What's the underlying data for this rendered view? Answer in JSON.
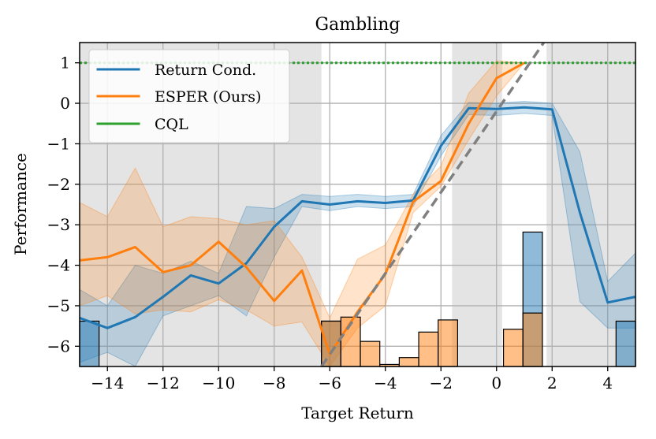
{
  "chart_data": {
    "type": "line",
    "title": "Gambling",
    "xlabel": "Target Return",
    "ylabel": "Performance",
    "xlim": [
      -15,
      5
    ],
    "ylim": [
      -6.5,
      1.5
    ],
    "grid": true,
    "legend_position": "top-left",
    "xticks": [
      -14,
      -12,
      -10,
      -8,
      -6,
      -4,
      -2,
      0,
      2,
      4
    ],
    "xtick_labels": [
      "−14",
      "−12",
      "−10",
      "−8",
      "−6",
      "−4",
      "−2",
      "0",
      "2",
      "4"
    ],
    "yticks": [
      1,
      0,
      -1,
      -2,
      -3,
      -4,
      -5,
      -6
    ],
    "ytick_labels": [
      "1",
      "0",
      "−1",
      "−2",
      "−3",
      "−4",
      "−5",
      "−6"
    ],
    "shaded_x_ranges": [
      [
        -15,
        -6.3
      ],
      [
        -1.6,
        0.2
      ],
      [
        1.8,
        5
      ]
    ],
    "reference_line": {
      "style": "dashed",
      "color": "#808080",
      "points": [
        [
          -6.3,
          -6.5
        ],
        [
          1.7,
          1.5
        ]
      ]
    },
    "series": [
      {
        "name": "Return Cond.",
        "color": "#1f77b4",
        "x": [
          -15,
          -14,
          -13,
          -12,
          -11,
          -10,
          -9,
          -8,
          -7,
          -6,
          -5,
          -4,
          -3,
          -2,
          -1,
          0,
          1,
          2,
          3,
          4,
          5
        ],
        "y": [
          -5.3,
          -5.55,
          -5.28,
          -4.78,
          -4.25,
          -4.45,
          -3.95,
          -3.05,
          -2.42,
          -2.5,
          -2.42,
          -2.46,
          -2.4,
          -1.05,
          -0.12,
          -0.14,
          -0.1,
          -0.15,
          -2.7,
          -4.92,
          -4.78
        ],
        "y_upper": [
          -4.6,
          -5.0,
          -4.0,
          -4.2,
          -3.9,
          -4.2,
          -2.55,
          -2.6,
          -2.25,
          -2.3,
          -2.25,
          -2.3,
          -2.25,
          -0.8,
          0.02,
          0.0,
          0.05,
          0.0,
          -1.2,
          -4.4,
          -3.7
        ],
        "y_lower": [
          -6.4,
          -6.15,
          -6.5,
          -5.25,
          -5.0,
          -4.75,
          -5.25,
          -3.8,
          -2.55,
          -2.65,
          -2.55,
          -2.6,
          -2.55,
          -1.3,
          -0.28,
          -0.3,
          -0.25,
          -0.3,
          -4.9,
          -5.55,
          -5.55
        ]
      },
      {
        "name": "ESPER (Ours)",
        "color": "#ff7f0e",
        "x": [
          -15,
          -14,
          -13,
          -12,
          -11,
          -10,
          -9,
          -8,
          -7,
          -6,
          -5,
          -4,
          -3,
          -2,
          -1,
          0,
          1
        ],
        "y": [
          -3.88,
          -3.8,
          -3.55,
          -4.17,
          -4.0,
          -3.42,
          -4.05,
          -4.88,
          -4.13,
          -6.2,
          -5.15,
          -4.22,
          -2.43,
          -1.92,
          -0.5,
          0.62,
          1.0
        ],
        "y_upper": [
          -2.45,
          -2.8,
          -1.6,
          -3.05,
          -2.8,
          -2.85,
          -3.0,
          -2.9,
          -3.8,
          -5.3,
          -3.85,
          -3.5,
          -2.25,
          -1.55,
          0.25,
          1.05,
          1.0
        ],
        "y_lower": [
          -5.0,
          -4.75,
          -5.2,
          -5.1,
          -5.15,
          -4.85,
          -5.1,
          -5.5,
          -5.4,
          -6.5,
          -5.55,
          -5.0,
          -2.7,
          -2.05,
          -0.9,
          0.18,
          1.0
        ]
      },
      {
        "name": "CQL",
        "color": "#2ca02c",
        "x": [
          -15,
          5
        ],
        "y": [
          1.0,
          1.0
        ]
      }
    ],
    "histograms": [
      {
        "name": "Return Cond.",
        "color": "#1f77b4",
        "bin_width": 0.7,
        "bars": [
          {
            "left": -15.0,
            "top": -5.38
          },
          {
            "left": -6.3,
            "top": -5.38
          },
          {
            "left": 0.95,
            "top": -3.18
          },
          {
            "left": 4.3,
            "top": -5.38
          }
        ]
      },
      {
        "name": "ESPER (Ours)",
        "color": "#ff7f0e",
        "bin_width": 0.7,
        "bars": [
          {
            "left": -6.3,
            "top": -5.38
          },
          {
            "left": -5.6,
            "top": -5.28
          },
          {
            "left": -4.9,
            "top": -5.88
          },
          {
            "left": -4.2,
            "top": -6.45
          },
          {
            "left": -3.5,
            "top": -6.28
          },
          {
            "left": -2.8,
            "top": -5.65
          },
          {
            "left": -2.1,
            "top": -5.35
          },
          {
            "left": 0.25,
            "top": -5.58
          },
          {
            "left": 0.95,
            "top": -5.18
          }
        ]
      }
    ]
  }
}
